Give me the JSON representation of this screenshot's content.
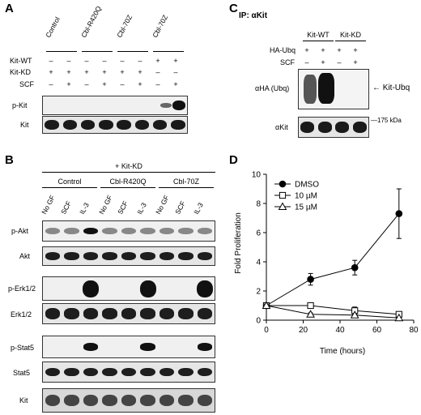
{
  "panel_labels": {
    "a": "A",
    "b": "B",
    "c": "C",
    "d": "D"
  },
  "panel_a": {
    "groups": [
      "Control",
      "Cbl-R420Q",
      "Cbl-70Z",
      "Cbl-70Z"
    ],
    "row_labels": [
      "Kit-WT",
      "Kit-KD",
      "SCF"
    ],
    "rows": [
      [
        "–",
        "–",
        "–",
        "–",
        "–",
        "–",
        "+",
        "+"
      ],
      [
        "+",
        "+",
        "+",
        "+",
        "+",
        "+",
        "–",
        "–"
      ],
      [
        "–",
        "+",
        "–",
        "+",
        "–",
        "+",
        "–",
        "+"
      ]
    ],
    "blots": [
      "p-Kit",
      "Kit"
    ]
  },
  "panel_b": {
    "header": "+ Kit-KD",
    "groups": [
      "Control",
      "Cbl-R420Q",
      "Cbl-70Z"
    ],
    "lanes": [
      "No GF",
      "SCF",
      "IL-3",
      "No GF",
      "SCF",
      "IL-3",
      "No GF",
      "SCF",
      "IL-3"
    ],
    "blots": [
      "p-Akt",
      "Akt",
      "p-Erk1/2",
      "Erk1/2",
      "p-Stat5",
      "Stat5",
      "Kit"
    ]
  },
  "panel_c": {
    "title": "IP: αKit",
    "groups": [
      "Kit-WT",
      "Kit-KD"
    ],
    "row_labels": [
      "HA-Ubq",
      "SCF"
    ],
    "rows": [
      [
        "+",
        "+",
        "+",
        "+"
      ],
      [
        "–",
        "+",
        "–",
        "+"
      ]
    ],
    "blot_labels": [
      "αHA (Ubq)",
      "αKit"
    ],
    "annotation": "Kit-Ubq",
    "mw_marker": "175 kDa"
  },
  "chart_data": {
    "type": "line",
    "title": "",
    "xlabel": "Time (hours)",
    "ylabel": "Fold Proliferation",
    "xlim": [
      0,
      80
    ],
    "ylim": [
      0,
      10
    ],
    "xticks": [
      0,
      20,
      40,
      60,
      80
    ],
    "yticks": [
      0,
      2,
      4,
      6,
      8,
      10
    ],
    "legend_position": "top-left",
    "series": [
      {
        "name": "DMSO",
        "marker": "filled-circle",
        "x": [
          0,
          24,
          48,
          72
        ],
        "y": [
          1.0,
          2.8,
          3.6,
          7.3
        ],
        "err": [
          0.15,
          0.4,
          0.5,
          1.7
        ]
      },
      {
        "name": "10 µM",
        "marker": "open-square",
        "x": [
          0,
          24,
          48,
          72
        ],
        "y": [
          1.0,
          1.0,
          0.65,
          0.4
        ],
        "err": [
          0.1,
          0.1,
          0.25,
          0.15
        ]
      },
      {
        "name": "15 µM",
        "marker": "open-triangle",
        "x": [
          0,
          24,
          48,
          72
        ],
        "y": [
          1.0,
          0.4,
          0.35,
          0.15
        ],
        "err": [
          0.1,
          0.1,
          0.1,
          0.05
        ]
      }
    ]
  }
}
